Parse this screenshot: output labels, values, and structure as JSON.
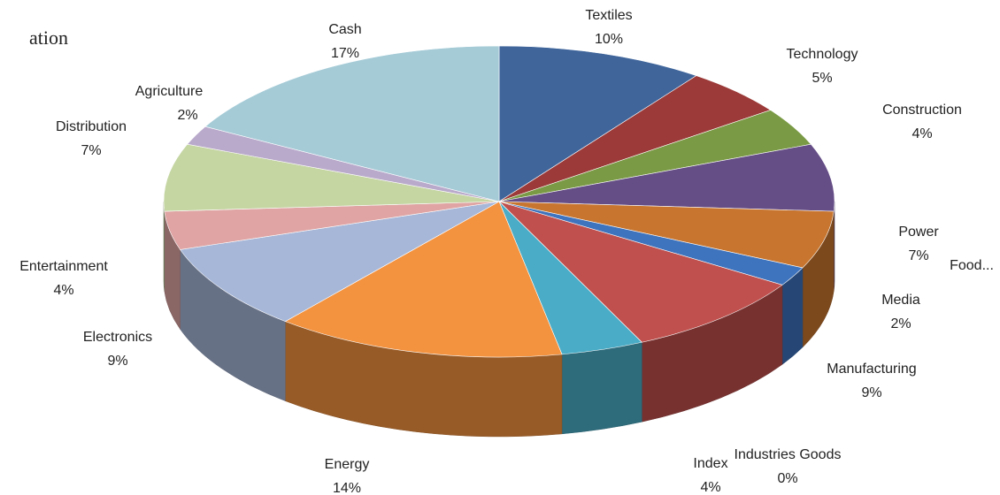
{
  "chart_data": {
    "type": "pie3d",
    "title": "ation",
    "categories": [
      "Textiles",
      "Technology",
      "Construction",
      "Power",
      "Food...",
      "Media",
      "Manufacturing",
      "Industries Goods",
      "Index",
      "Energy",
      "Electronics",
      "Entertainment",
      "Distribution",
      "Agriculture",
      "Cash"
    ],
    "values": [
      10,
      5,
      4,
      7,
      6,
      2,
      9,
      0,
      4,
      14,
      9,
      4,
      7,
      2,
      17
    ],
    "value_labels": [
      "10%",
      "5%",
      "4%",
      "7%",
      null,
      "2%",
      "9%",
      "0%",
      "4%",
      "14%",
      "9%",
      "4%",
      "7%",
      "2%",
      "17%"
    ],
    "colors": [
      "#3f659b",
      "#9b3a38",
      "#7a9a45",
      "#654d86",
      "#c8762f",
      "#3e73bd",
      "#c0504d",
      "#7f64a0",
      "#4aacc6",
      "#f3923f",
      "#a6b7d8",
      "#dfa4a3",
      "#c5d6a3",
      "#b9a9cb",
      "#a5cbd7"
    ]
  }
}
